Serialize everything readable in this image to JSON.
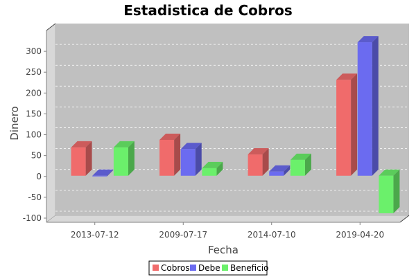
{
  "chart_data": {
    "type": "bar",
    "title": "Estadistica de Cobros",
    "xlabel": "Fecha",
    "ylabel": "Dinero",
    "categories": [
      "2013-07-12",
      "2009-07-17",
      "2014-07-10",
      "2019-04-20"
    ],
    "series": [
      {
        "name": "Cobros",
        "values": [
          68,
          86,
          51,
          230
        ],
        "color": "#f06b6b"
      },
      {
        "name": "Debe",
        "values": [
          0,
          64,
          10,
          320
        ],
        "color": "#6b6bf0"
      },
      {
        "name": "Beneficio",
        "values": [
          68,
          18,
          38,
          -90
        ],
        "color": "#6bf06b"
      }
    ],
    "ylim": [
      -110,
      350
    ],
    "yticks": [
      -100,
      -50,
      0,
      50,
      100,
      150,
      200,
      250,
      300
    ],
    "grid": true,
    "legend_position": "bottom",
    "background_color": "#c0c0c0"
  }
}
